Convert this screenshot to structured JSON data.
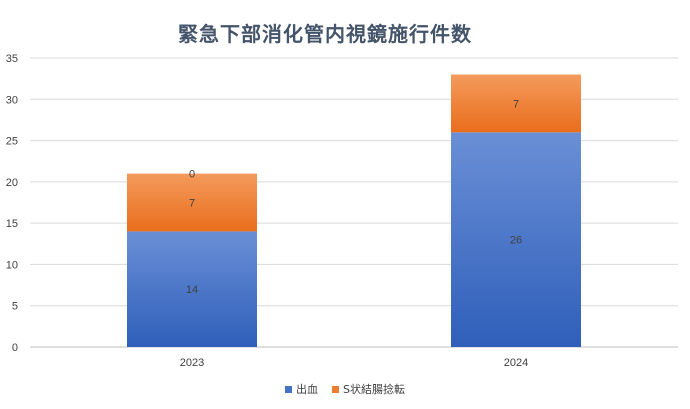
{
  "chart_data": {
    "type": "bar",
    "stacked": true,
    "title": "緊急下部消化管内視鏡施行件数",
    "categories": [
      "2023",
      "2024"
    ],
    "series": [
      {
        "name": "出血",
        "values": [
          14,
          26
        ],
        "color": "#4472c4"
      },
      {
        "name": "S状結腸捻転",
        "values": [
          7,
          7
        ],
        "color": "#ed7d31"
      },
      {
        "name": "",
        "values": [
          0,
          null
        ],
        "color": "#ed7d31"
      }
    ],
    "ylim": [
      0,
      35
    ],
    "yticks": [
      0,
      5,
      10,
      15,
      20,
      25,
      30,
      35
    ],
    "grid": true,
    "legend_position": "bottom"
  }
}
